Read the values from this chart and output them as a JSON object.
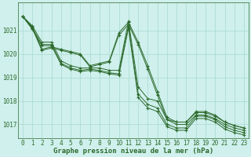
{
  "title": "Graphe pression niveau de la mer (hPa)",
  "xlabel_hours": [
    0,
    1,
    2,
    3,
    4,
    5,
    6,
    7,
    8,
    9,
    10,
    11,
    12,
    13,
    14,
    15,
    16,
    17,
    18,
    19,
    20,
    21,
    22,
    23
  ],
  "series": [
    [
      1021.6,
      1021.2,
      1020.5,
      1020.5,
      1019.7,
      1019.5,
      1019.4,
      1019.4,
      1019.4,
      1019.3,
      1019.3,
      1021.4,
      1018.6,
      1018.1,
      1018.0,
      1017.2,
      1017.1,
      1017.1,
      1017.55,
      1017.55,
      1017.4,
      1017.1,
      1016.95,
      1016.85
    ],
    [
      1021.6,
      1021.1,
      1020.4,
      1020.4,
      1019.6,
      1019.4,
      1019.3,
      1019.35,
      1019.3,
      1019.2,
      1019.15,
      1021.2,
      1018.3,
      1017.85,
      1017.7,
      1017.0,
      1016.85,
      1016.85,
      1017.35,
      1017.35,
      1017.2,
      1016.9,
      1016.75,
      1016.65
    ],
    [
      1021.6,
      1021.05,
      1020.35,
      1020.35,
      1019.55,
      1019.35,
      1019.25,
      1019.3,
      1019.25,
      1019.15,
      1019.1,
      1021.1,
      1018.15,
      1017.7,
      1017.55,
      1016.9,
      1016.75,
      1016.75,
      1017.25,
      1017.25,
      1017.1,
      1016.8,
      1016.65,
      1016.55
    ],
    [
      1021.6,
      1021.15,
      1020.2,
      1020.3,
      1020.2,
      1020.1,
      1020.0,
      1019.5,
      1019.6,
      1019.7,
      1020.9,
      1021.35,
      1020.5,
      1019.5,
      1018.4,
      1017.3,
      1017.1,
      1017.1,
      1017.5,
      1017.5,
      1017.35,
      1017.1,
      1016.95,
      1016.85
    ],
    [
      1021.6,
      1021.1,
      1020.15,
      1020.25,
      1020.15,
      1020.05,
      1019.95,
      1019.45,
      1019.55,
      1019.65,
      1020.8,
      1021.25,
      1020.4,
      1019.35,
      1018.25,
      1017.2,
      1017.0,
      1017.0,
      1017.4,
      1017.4,
      1017.25,
      1017.0,
      1016.85,
      1016.75
    ]
  ],
  "line_color": "#2d6a2d",
  "marker": "+",
  "bg_color": "#cff0ec",
  "grid_color": "#a8d8d0",
  "tick_label_color": "#2d6a2d",
  "title_color": "#2d6a2d",
  "ylim": [
    1016.4,
    1022.2
  ],
  "yticks": [
    1017,
    1018,
    1019,
    1020,
    1021
  ],
  "title_fontsize": 6.5,
  "tick_fontsize": 5.5
}
